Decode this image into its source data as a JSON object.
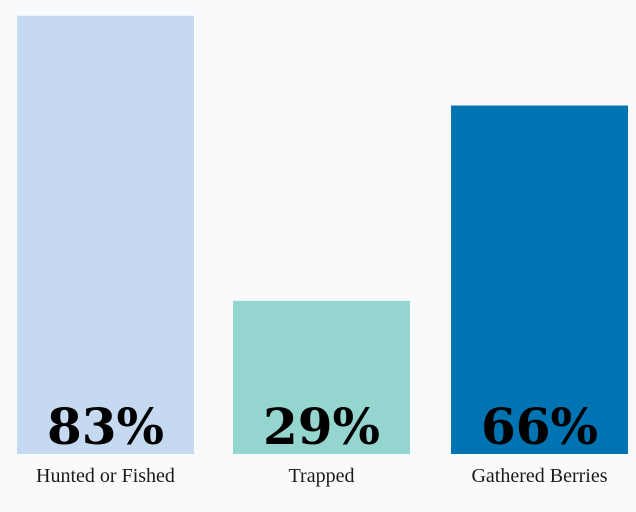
{
  "chart_data": {
    "type": "bar",
    "title": "",
    "xlabel": "",
    "ylabel": "",
    "categories": [
      "Hunted or Fished",
      "Trapped",
      "Gathered Berries"
    ],
    "values": [
      83,
      29,
      66
    ],
    "value_labels": [
      "83%",
      "29%",
      "66%"
    ],
    "colors": [
      "#c5daf1",
      "#94d5cf",
      "#0073b3"
    ],
    "ylim": [
      0,
      100
    ],
    "grid": false,
    "legend": "none"
  }
}
